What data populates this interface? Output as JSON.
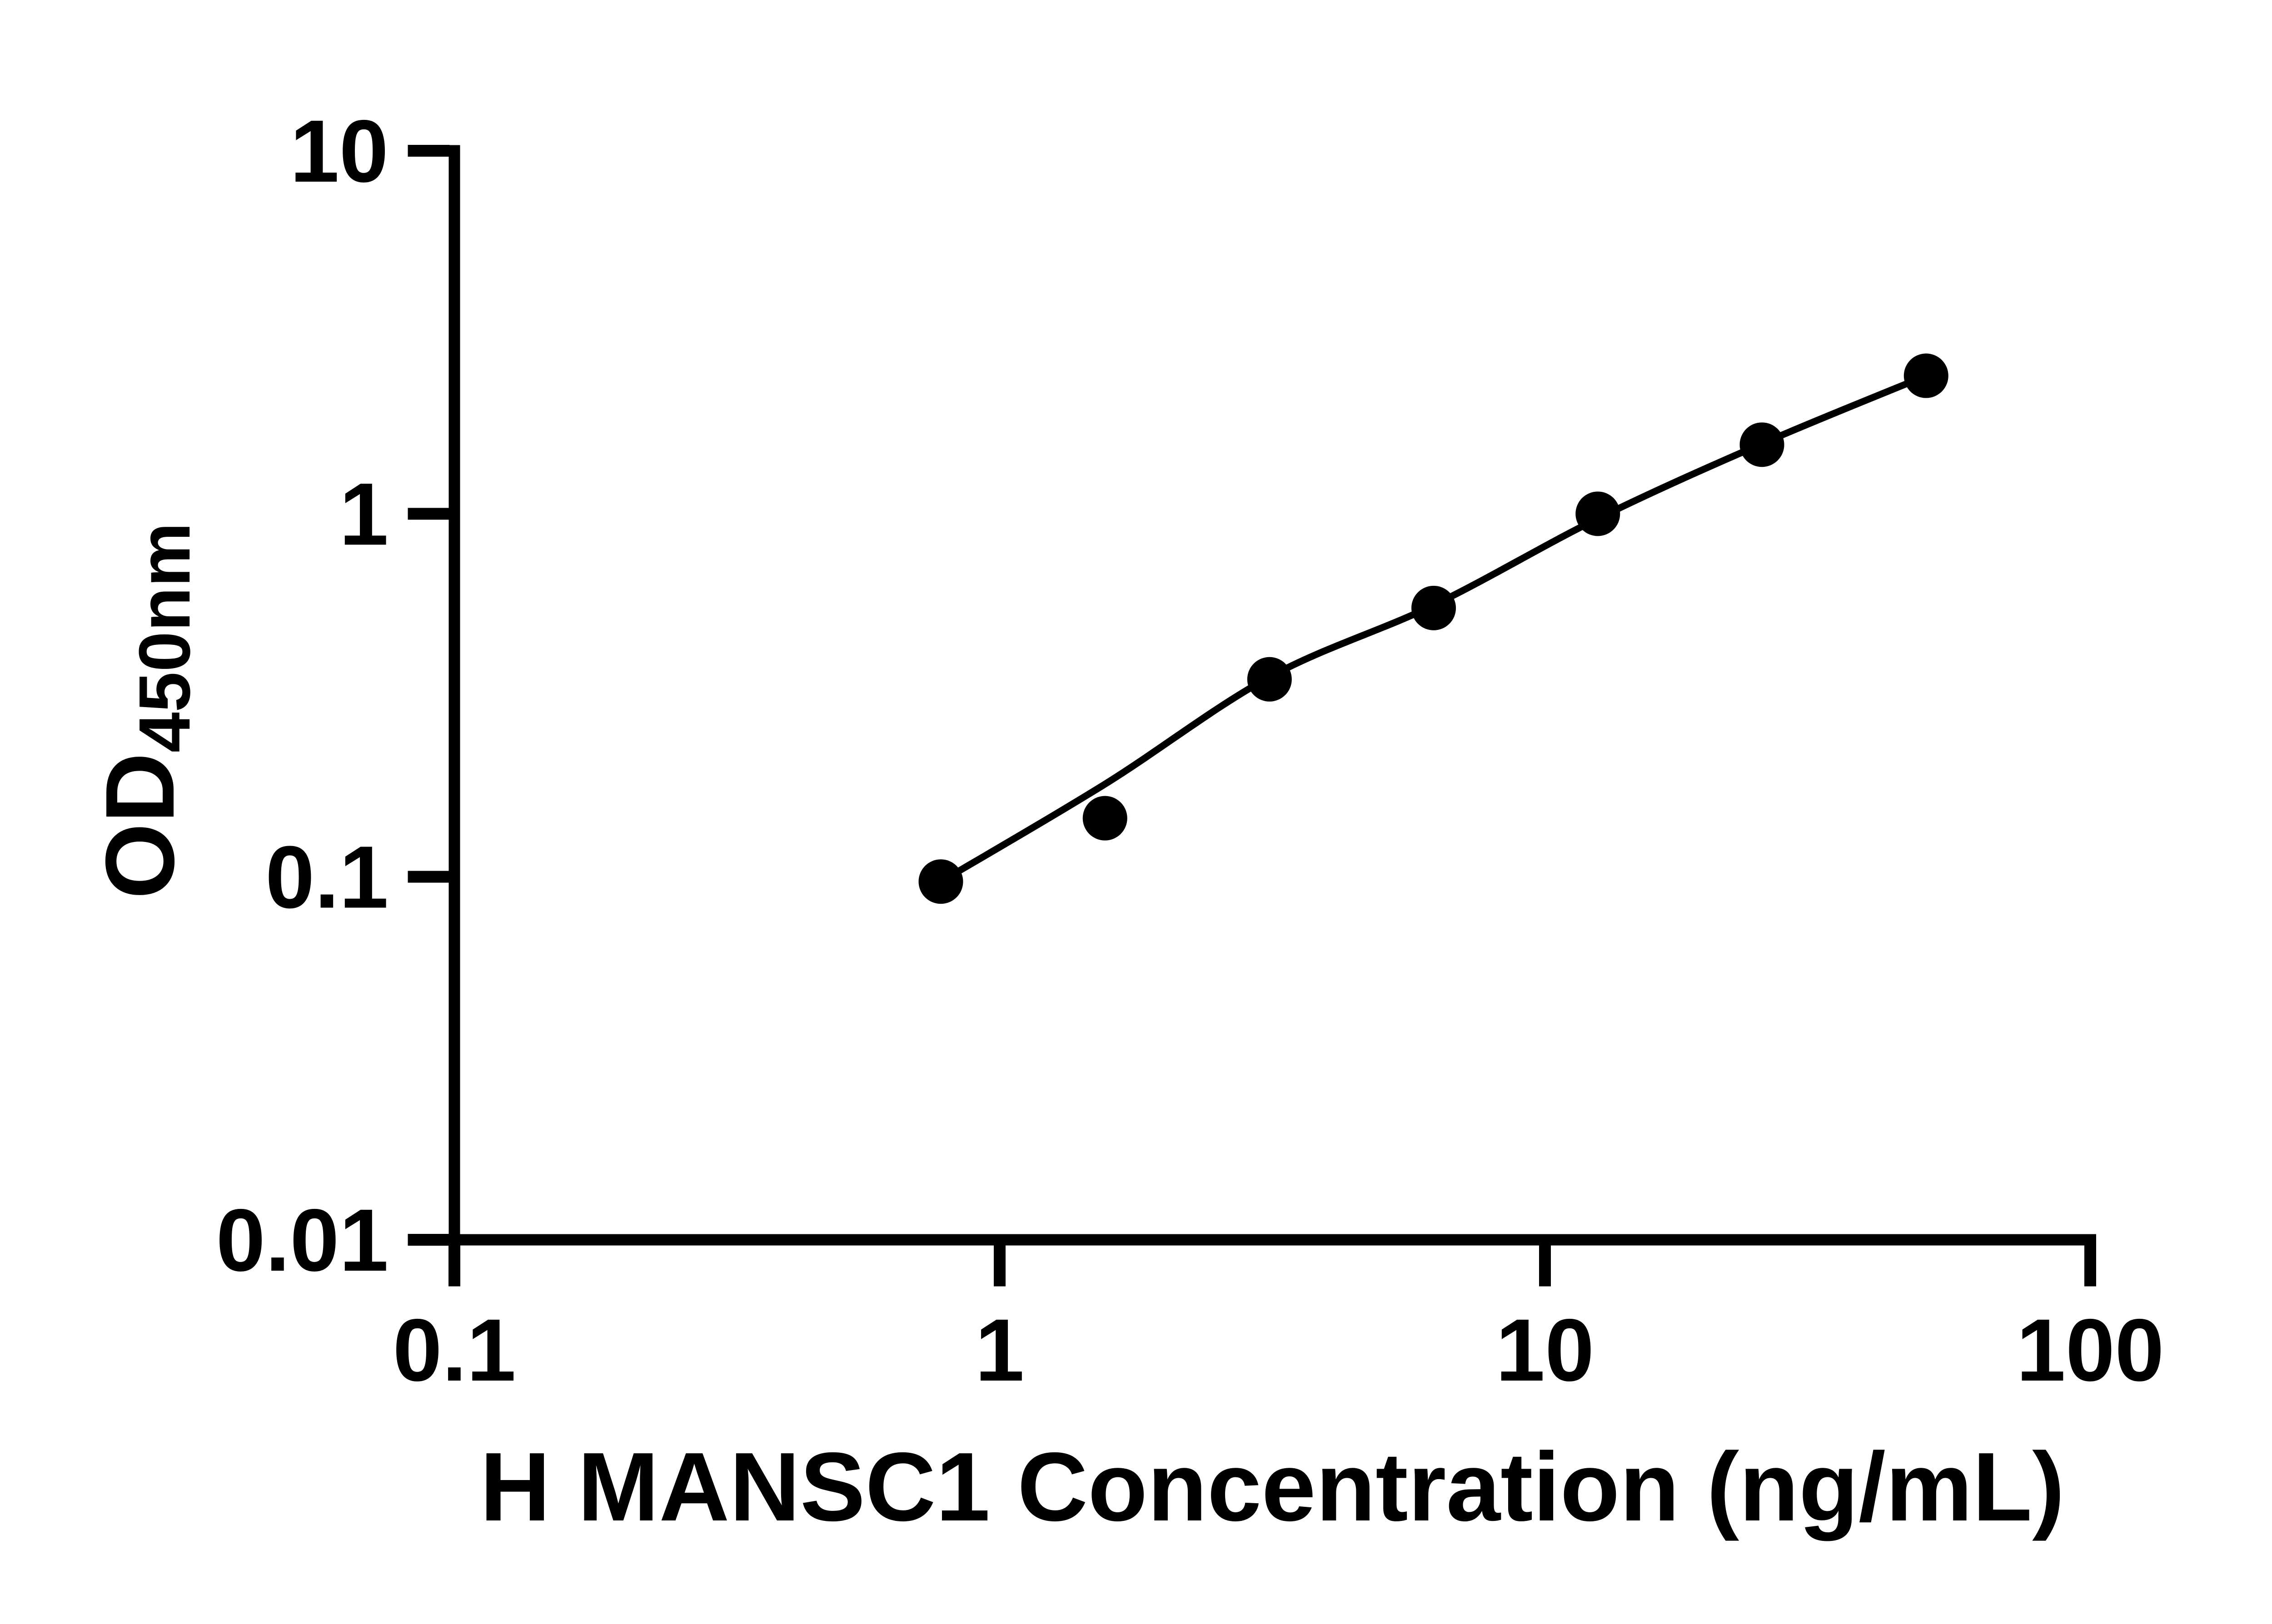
{
  "figure": {
    "background": "#ffffff",
    "ink_color": "#000000"
  },
  "axes": {
    "x": {
      "title": "H MANSC1 Concentration (ng/mL)",
      "scale": "log10",
      "min": 0.1,
      "max": 100,
      "tick_values": [
        0.1,
        1,
        10,
        100
      ],
      "tick_labels": [
        "0.1",
        "1",
        "10",
        "100"
      ]
    },
    "y": {
      "title_main": "OD",
      "title_sub": "450nm",
      "scale": "log10",
      "min": 0.01,
      "max": 10,
      "tick_values": [
        10,
        1,
        0.1,
        0.01
      ],
      "tick_labels": [
        "10",
        "1",
        "0.1",
        "0.01"
      ]
    }
  },
  "chart_data": {
    "type": "scatter",
    "title": "",
    "xlabel": "H MANSC1 Concentration (ng/mL)",
    "ylabel": "OD450nm",
    "xlim": [
      0.1,
      100
    ],
    "ylim": [
      0.01,
      10
    ],
    "xscale": "log",
    "yscale": "log",
    "grid": false,
    "legend": null,
    "series": [
      {
        "name": "standard-points",
        "role": "markers",
        "marker": "filled-circle",
        "color": "#000000",
        "x": [
          0.78,
          1.56,
          3.125,
          6.25,
          12.5,
          25,
          50
        ],
        "y": [
          0.097,
          0.145,
          0.35,
          0.55,
          1.0,
          1.55,
          2.4
        ]
      },
      {
        "name": "fit-curve",
        "role": "line",
        "color": "#000000",
        "x": [
          0.78,
          1.56,
          3.125,
          6.25,
          12.5,
          25,
          50
        ],
        "y": [
          0.097,
          0.18,
          0.355,
          0.56,
          0.97,
          1.56,
          2.4
        ]
      }
    ]
  }
}
